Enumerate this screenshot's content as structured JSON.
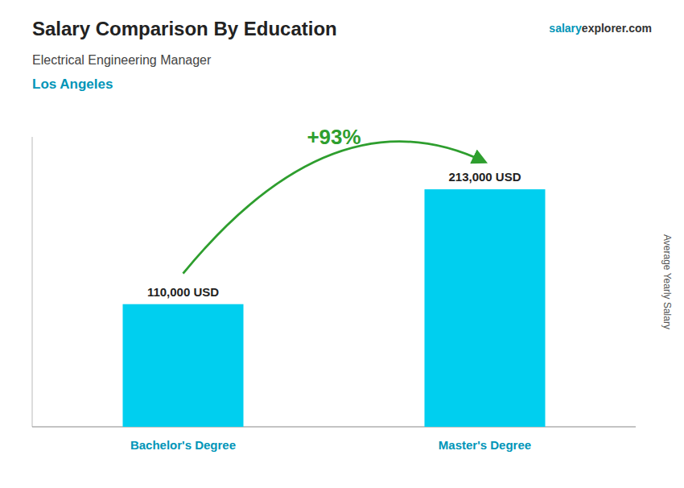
{
  "chart_data": {
    "type": "bar",
    "title": "Salary Comparison By Education",
    "subtitle": "Electrical Engineering Manager",
    "ylabel": "Average Yearly Salary",
    "annotations": [
      "Los Angeles",
      "+93%",
      "salary",
      "explorer.com"
    ],
    "categories": [
      "Bachelor's Degree",
      "Master's Degree"
    ],
    "values": [
      110000,
      213000
    ],
    "value_labels": [
      "110,000 USD",
      "213,000 USD"
    ],
    "data_labels": true,
    "color": "#00CFEF",
    "ylim": [
      0,
      260000
    ],
    "tick_labels": false,
    "grid": false
  }
}
